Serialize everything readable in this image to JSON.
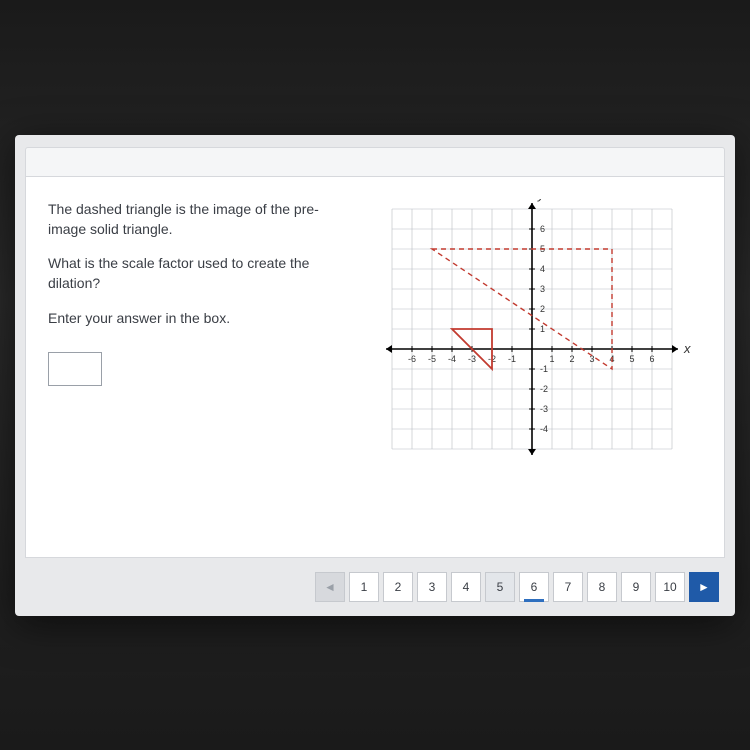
{
  "question": {
    "line1": "The dashed triangle is the image of the pre-image solid triangle.",
    "line2": "What is the scale factor used to create the dilation?",
    "line3": "Enter your answer in the box."
  },
  "answer_value": "",
  "pager": {
    "prev_label": "◄",
    "next_label": "►",
    "pages": [
      "1",
      "2",
      "3",
      "4",
      "5",
      "6",
      "7",
      "8",
      "9",
      "10"
    ],
    "current": "6",
    "shadow_current": "5"
  },
  "chart": {
    "type": "coordinate-grid",
    "x_label": "x",
    "y_label": "y",
    "x_ticks": [
      "-6",
      "-5",
      "-4",
      "-3",
      "-2",
      "-1",
      "1",
      "2",
      "3",
      "4",
      "5",
      "6"
    ],
    "y_ticks_pos": [
      "6",
      "5",
      "4",
      "3",
      "2",
      "1"
    ],
    "y_ticks_neg": [
      "-1",
      "-2",
      "-3",
      "-4"
    ],
    "xlim": [
      -7,
      7
    ],
    "ylim": [
      -5,
      7
    ],
    "grid_step": 1,
    "background": "#ffffff",
    "grid_color": "#b8bcc2",
    "axis_color": "#000000",
    "tick_font_size": 9,
    "label_font_size": 13,
    "solid_triangle": {
      "points": [
        [
          -4,
          1
        ],
        [
          -2,
          1
        ],
        [
          -2,
          -1
        ]
      ],
      "stroke": "#c23a2f",
      "stroke_width": 1.8,
      "fill": "none"
    },
    "dashed_triangle": {
      "points": [
        [
          -5,
          5
        ],
        [
          4,
          5
        ],
        [
          4,
          -1
        ]
      ],
      "stroke": "#c23a2f",
      "stroke_width": 1.4,
      "dash": "5,4",
      "fill": "none"
    }
  }
}
